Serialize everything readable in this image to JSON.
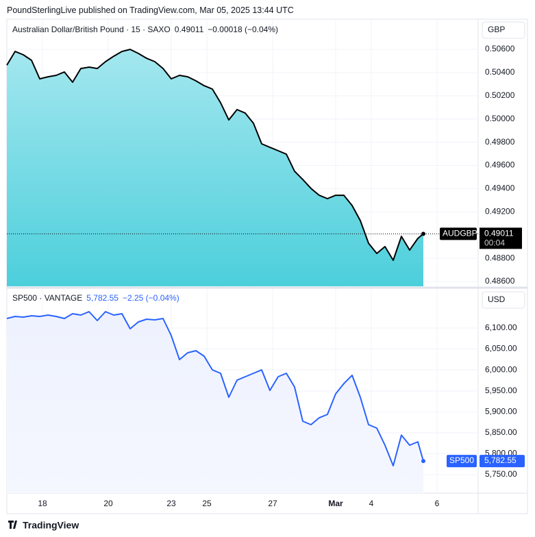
{
  "header": {
    "publisher": "PoundSterlingLive published on TradingView.com, Mar 05, 2025 13:44 UTC"
  },
  "footer": {
    "logo": "TradingView"
  },
  "chart_data": [
    {
      "type": "area",
      "title": "Australian Dollar/British Pound · 15 · SAXO",
      "last_value": 0.49011,
      "change": "−0.00018 (−0.04%)",
      "currency": "GBP",
      "symbol_tag": "AUDGBP",
      "countdown": "00:04",
      "color": "#000000",
      "fill_top": "#a4e7ef",
      "fill_bottom": "#4ccfdb",
      "x": [
        0,
        3,
        6,
        9,
        12,
        15,
        18,
        21,
        24,
        27,
        30,
        33,
        36,
        39,
        42,
        45,
        48,
        51,
        54,
        57,
        60,
        63,
        66,
        69,
        72,
        75,
        78,
        81,
        84,
        87,
        90,
        93,
        96,
        99,
        102,
        105,
        108,
        111,
        114,
        117,
        120,
        123,
        126,
        129,
        132,
        135,
        138,
        141,
        144,
        147,
        150,
        152
      ],
      "values": [
        0.50464,
        0.50582,
        0.50553,
        0.50506,
        0.50346,
        0.50364,
        0.50376,
        0.50405,
        0.50317,
        0.50435,
        0.50447,
        0.50435,
        0.50494,
        0.50541,
        0.50582,
        0.506,
        0.50565,
        0.50523,
        0.50494,
        0.50435,
        0.50346,
        0.50376,
        0.50364,
        0.50329,
        0.50287,
        0.50258,
        0.5014,
        0.49992,
        0.50081,
        0.50051,
        0.49963,
        0.49786,
        0.49756,
        0.49727,
        0.49697,
        0.4955,
        0.49479,
        0.49402,
        0.49343,
        0.49314,
        0.49343,
        0.49343,
        0.49255,
        0.49125,
        0.4893,
        0.48842,
        0.48901,
        0.48783,
        0.48989,
        0.48871,
        0.48972,
        0.49011
      ],
      "xlim": [
        0,
        172
      ],
      "ylim": [
        0.48559,
        0.5086
      ],
      "yticks": [
        {
          "value": 0.486,
          "label": "0.48600"
        },
        {
          "value": 0.488,
          "label": "0.48800"
        },
        {
          "value": 0.49,
          "label": "0.49000"
        },
        {
          "value": 0.492,
          "label": "0.49200"
        },
        {
          "value": 0.494,
          "label": "0.49400"
        },
        {
          "value": 0.496,
          "label": "0.49600"
        },
        {
          "value": 0.498,
          "label": "0.49800"
        },
        {
          "value": 0.5,
          "label": "0.50000"
        },
        {
          "value": 0.502,
          "label": "0.50200"
        },
        {
          "value": 0.504,
          "label": "0.50400"
        },
        {
          "value": 0.506,
          "label": "0.50600"
        }
      ],
      "grid": true
    },
    {
      "type": "area",
      "title": "SP500 · VANTAGE",
      "last_value": 5782.55,
      "last_value_label": "5,782.55",
      "change": "−2.25 (−0.04%)",
      "currency": "USD",
      "symbol_tag": "SP500",
      "color": "#2962ff",
      "fill_top": "#eef2fe",
      "fill_bottom": "#f5f7ff",
      "x": [
        0,
        3,
        6,
        9,
        12,
        15,
        18,
        21,
        24,
        27,
        30,
        33,
        36,
        39,
        42,
        45,
        48,
        51,
        54,
        57,
        60,
        63,
        66,
        69,
        72,
        75,
        78,
        81,
        84,
        87,
        90,
        93,
        96,
        99,
        102,
        105,
        108,
        111,
        114,
        117,
        120,
        123,
        126,
        129,
        132,
        135,
        138,
        141,
        144,
        147,
        150,
        152
      ],
      "values": [
        6122.9,
        6127.8,
        6126.2,
        6129.4,
        6127.8,
        6131.1,
        6127.8,
        6122.9,
        6134.3,
        6131.1,
        6139.3,
        6118.0,
        6139.3,
        6131.1,
        6134.3,
        6098.4,
        6114.7,
        6121.3,
        6119.6,
        6122.9,
        6082.0,
        6024.8,
        6041.1,
        6046.0,
        6032.9,
        6000.2,
        5992.1,
        5934.8,
        5975.7,
        5983.9,
        5992.1,
        6000.2,
        5951.2,
        5983.9,
        5992.1,
        5959.3,
        5877.6,
        5869.4,
        5885.8,
        5893.9,
        5943.0,
        5967.5,
        5987.2,
        5934.8,
        5869.4,
        5861.2,
        5820.3,
        5771.3,
        5844.4,
        5820.3,
        5828.5,
        5782.55
      ],
      "xlim": [
        0,
        172
      ],
      "ylim": [
        5705.8,
        6193.2
      ],
      "xticks": [
        {
          "value": 13,
          "label": "18"
        },
        {
          "value": 37,
          "label": "20"
        },
        {
          "value": 60,
          "label": "23"
        },
        {
          "value": 73,
          "label": "25"
        },
        {
          "value": 97,
          "label": "27"
        },
        {
          "value": 120,
          "label": "Mar"
        },
        {
          "value": 133,
          "label": "4"
        },
        {
          "value": 157,
          "label": "6"
        }
      ],
      "yticks": [
        {
          "value": 5750,
          "label": "5,750.00"
        },
        {
          "value": 5800,
          "label": "5,800.00"
        },
        {
          "value": 5850,
          "label": "5,850.00"
        },
        {
          "value": 5900,
          "label": "5,900.00"
        },
        {
          "value": 5950,
          "label": "5,950.00"
        },
        {
          "value": 6000,
          "label": "6,000.00"
        },
        {
          "value": 6050,
          "label": "6,050.00"
        },
        {
          "value": 6100,
          "label": "6,100.00"
        }
      ],
      "grid": true
    }
  ]
}
